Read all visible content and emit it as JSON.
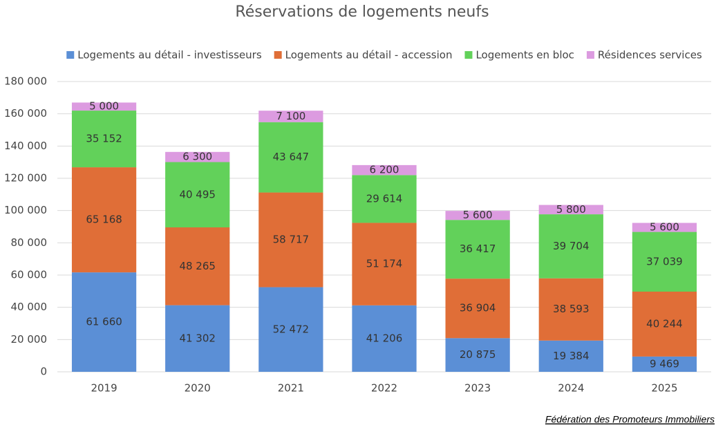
{
  "chart_data": {
    "type": "stacked-bar",
    "title": "Réservations de logements neufs",
    "source": "Fédération des Promoteurs Immobiliers",
    "categories": [
      "2019",
      "2020",
      "2021",
      "2022",
      "2023",
      "2024",
      "2025"
    ],
    "series": [
      {
        "name": "Logements au détail - investisseurs",
        "color": "#5b8fd6",
        "values": [
          61660,
          41302,
          52472,
          41206,
          20875,
          19384,
          9469
        ],
        "value_labels": [
          "61 660",
          "41 302",
          "52 472",
          "41 206",
          "20 875",
          "19 384",
          "9 469"
        ]
      },
      {
        "name": "Logements au détail - accession",
        "color": "#e06e37",
        "values": [
          65168,
          48265,
          58717,
          51174,
          36904,
          38593,
          40244
        ],
        "value_labels": [
          "65 168",
          "48 265",
          "58 717",
          "51 174",
          "36 904",
          "38 593",
          "40 244"
        ]
      },
      {
        "name": "Logements en bloc",
        "color": "#62d15a",
        "values": [
          35152,
          40495,
          43647,
          29614,
          36417,
          39704,
          37039
        ],
        "value_labels": [
          "35 152",
          "40 495",
          "43 647",
          "29 614",
          "36 417",
          "39 704",
          "37 039"
        ]
      },
      {
        "name": "Résidences services",
        "color": "#dc9be0",
        "values": [
          5000,
          6300,
          7100,
          6200,
          5600,
          5800,
          5600
        ],
        "value_labels": [
          "5 000",
          "6 300",
          "7 100",
          "6 200",
          "5 600",
          "5 800",
          "5 600"
        ]
      }
    ],
    "ylim": [
      0,
      180000
    ],
    "yticks": [
      0,
      {
        "value": 20000,
        "label": "20 000"
      },
      {
        "value": 40000,
        "label": "40 000"
      },
      {
        "value": 60000,
        "label": "60 000"
      },
      {
        "value": 80000,
        "label": "80 000"
      },
      {
        "value": 100000,
        "label": "100 000"
      },
      {
        "value": 120000,
        "label": "120 000"
      },
      {
        "value": 140000,
        "label": "140 000"
      },
      {
        "value": 160000,
        "label": "160 000"
      },
      {
        "value": 180000,
        "label": "180 000"
      }
    ],
    "grid": true,
    "legend": "top"
  }
}
